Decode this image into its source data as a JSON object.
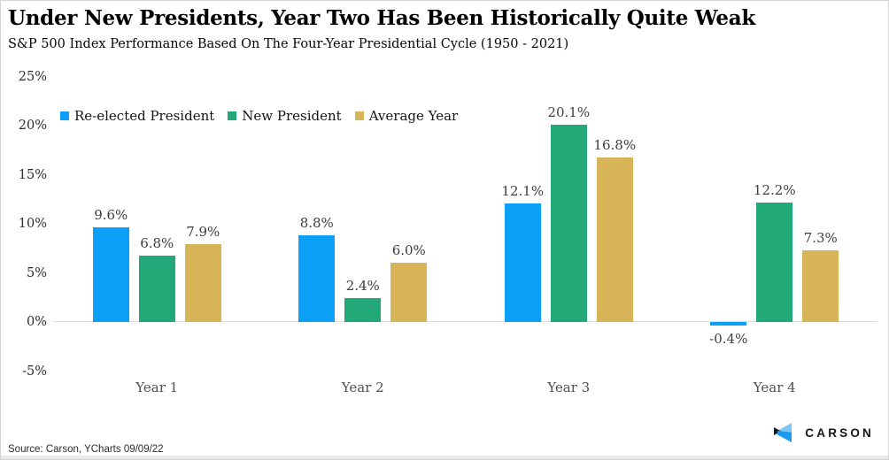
{
  "header": {
    "title": "Under New Presidents, Year Two Has Been Historically Quite Weak",
    "subtitle": "S&P 500 Index Performance Based On The Four-Year Presidential Cycle (1950 - 2021)"
  },
  "chart_data": {
    "type": "bar",
    "categories": [
      "Year 1",
      "Year 2",
      "Year 3",
      "Year 4"
    ],
    "series": [
      {
        "name": "Re-elected President",
        "color": "#0b9ff7",
        "values": [
          9.6,
          8.8,
          12.1,
          -0.4
        ]
      },
      {
        "name": "New President",
        "color": "#23a877",
        "values": [
          6.8,
          2.4,
          20.1,
          12.2
        ]
      },
      {
        "name": "Average Year",
        "color": "#d7b457",
        "values": [
          7.9,
          6.0,
          16.8,
          7.3
        ]
      }
    ],
    "value_labels": [
      [
        "9.6%",
        "8.8%",
        "12.1%",
        "-0.4%"
      ],
      [
        "6.8%",
        "2.4%",
        "20.1%",
        "12.2%"
      ],
      [
        "7.9%",
        "6.0%",
        "16.8%",
        "7.3%"
      ]
    ],
    "ylabel": "",
    "xlabel": "",
    "ylim": [
      -5,
      25
    ],
    "yticks": [
      {
        "value": 25,
        "label": "25%"
      },
      {
        "value": 20,
        "label": "20%"
      },
      {
        "value": 15,
        "label": "15%"
      },
      {
        "value": 10,
        "label": "10%"
      },
      {
        "value": 5,
        "label": "5%"
      },
      {
        "value": 0,
        "label": "0%"
      },
      {
        "value": -5,
        "label": "-5%"
      }
    ],
    "grid": "zero-line-only",
    "legend_position": "top-left"
  },
  "footer": {
    "source": "Source: Carson, YCharts 09/09/22",
    "brand": "CARSON"
  },
  "colors": {
    "blue": "#0b9ff7",
    "green": "#23a877",
    "gold": "#d7b457",
    "zero_line": "#dcdcdc",
    "logo_light_blue": "#7ec8f4",
    "logo_blue": "#1e9bf0",
    "logo_black": "#17171f"
  }
}
